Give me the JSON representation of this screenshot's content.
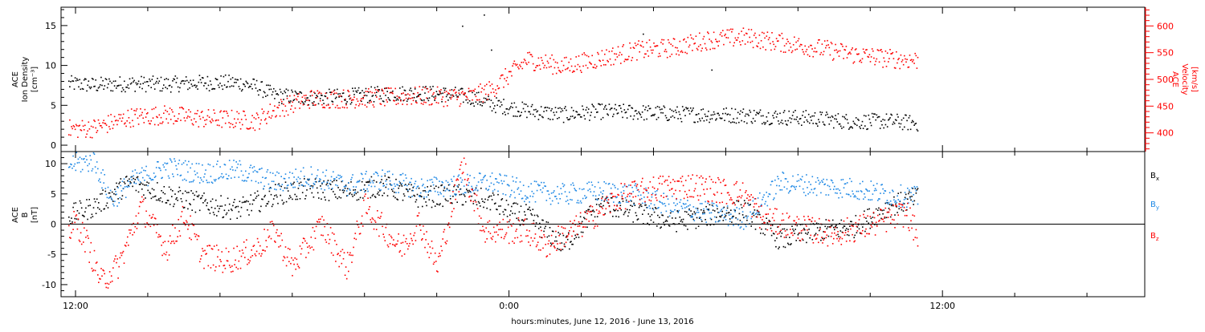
{
  "chart_data": [
    {
      "type": "scatter",
      "panel": "ion-density-velocity",
      "x_axis": {
        "label": "hours:minutes, June 12, 2016 - June 13, 2016",
        "tick_labels": [
          "12:00",
          "0:00",
          "12:00"
        ],
        "tick_times_hours": [
          12,
          24,
          36
        ],
        "xlim_hours": [
          11.6,
          41.6
        ]
      },
      "left_axis": {
        "label_lines": [
          "ACE",
          "Ion Density",
          "[cm⁻³]"
        ],
        "ylim": [
          -0.8,
          17.3
        ],
        "ticks": [
          0,
          5,
          10,
          15
        ],
        "color": "#000000"
      },
      "right_axis": {
        "label_lines": [
          "ACE",
          "Velocity",
          "[km/s]"
        ],
        "ylim": [
          365,
          635
        ],
        "ticks": [
          400,
          450,
          500,
          550,
          600
        ],
        "color": "#ff0000"
      },
      "series": [
        {
          "key": "density",
          "axis": "left",
          "color": "#000000",
          "x_hours": [
            11.8,
            12.5,
            13.5,
            14.5,
            15.5,
            16.5,
            17.0,
            17.5,
            18.5,
            19.5,
            20.5,
            21.5,
            22.5,
            23.0,
            23.5,
            24.5,
            25.5,
            26.5,
            27.5,
            28.5,
            29.5,
            30.5,
            31.5,
            32.5,
            33.5,
            34.5,
            35.3
          ],
          "values": [
            7.8,
            7.6,
            7.8,
            7.7,
            7.9,
            7.9,
            7.4,
            6.3,
            6.0,
            6.2,
            6.5,
            6.6,
            6.4,
            6.0,
            5.2,
            4.4,
            3.9,
            4.3,
            4.2,
            4.0,
            3.9,
            3.8,
            3.6,
            3.4,
            3.0,
            3.1,
            2.8
          ]
        },
        {
          "key": "velocity",
          "axis": "right",
          "color": "#ff0000",
          "x_hours": [
            11.8,
            12.5,
            13.5,
            14.5,
            15.5,
            16.5,
            17.0,
            17.5,
            18.5,
            19.5,
            20.5,
            21.5,
            22.5,
            23.0,
            23.5,
            24.5,
            25.5,
            26.5,
            27.5,
            28.5,
            29.5,
            30.5,
            31.5,
            32.5,
            33.5,
            34.5,
            35.3
          ],
          "values": [
            408,
            410,
            430,
            435,
            428,
            426,
            423,
            445,
            465,
            465,
            467,
            470,
            468,
            470,
            482,
            538,
            525,
            540,
            555,
            560,
            575,
            580,
            570,
            560,
            548,
            540,
            537
          ]
        }
      ]
    },
    {
      "type": "scatter",
      "panel": "magnetic-field",
      "left_axis": {
        "label_lines": [
          "ACE",
          "B",
          "[nT]"
        ],
        "ylim": [
          -12,
          12
        ],
        "ticks": [
          -10,
          -5,
          0,
          5,
          10
        ],
        "zero_line": true
      },
      "legend": [
        "Bx",
        "By",
        "Bz"
      ],
      "legend_placement": "right",
      "series": [
        {
          "key": "Bx",
          "color": "#000000",
          "x_hours": [
            11.8,
            12.5,
            13.5,
            14.5,
            15.5,
            16.5,
            17.5,
            18.5,
            19.5,
            20.5,
            21.5,
            22.5,
            23.5,
            24.0,
            24.5,
            25.5,
            26.5,
            27.5,
            28.5,
            29.5,
            30.5,
            31.5,
            32.5,
            33.5,
            34.5,
            35.3
          ],
          "values": [
            1.5,
            3.0,
            7.0,
            5.0,
            3.5,
            2.5,
            5.0,
            6.0,
            5.5,
            6.5,
            4.5,
            5.0,
            4.0,
            2.0,
            1.5,
            -3.5,
            3.5,
            2.0,
            0.5,
            1.5,
            2.5,
            -2.5,
            -1.0,
            -0.5,
            3.0,
            4.5
          ]
        },
        {
          "key": "By",
          "color": "#1e88e5",
          "x_hours": [
            11.8,
            12.5,
            13.0,
            13.5,
            14.5,
            15.5,
            16.5,
            17.5,
            18.5,
            19.5,
            20.5,
            21.5,
            22.5,
            23.5,
            24.5,
            25.5,
            26.5,
            27.5,
            28.5,
            29.5,
            30.5,
            31.5,
            32.5,
            33.5,
            34.5,
            35.3
          ],
          "values": [
            10.0,
            10.5,
            4.0,
            7.0,
            9.5,
            8.5,
            9.0,
            7.0,
            8.0,
            6.5,
            7.5,
            6.0,
            6.5,
            7.0,
            5.5,
            5.0,
            5.5,
            5.0,
            3.0,
            2.0,
            1.0,
            7.0,
            6.5,
            6.0,
            5.0,
            4.5
          ]
        },
        {
          "key": "Bz",
          "color": "#ff0000",
          "x_hours": [
            11.8,
            12.0,
            12.3,
            12.7,
            13.2,
            13.8,
            14.5,
            15.0,
            15.5,
            16.2,
            17.0,
            17.5,
            18.0,
            18.8,
            19.5,
            20.0,
            21.0,
            21.5,
            22.0,
            22.7,
            23.3,
            24.5,
            25.0,
            26.0,
            27.0,
            28.0,
            29.0,
            29.5,
            30.5,
            31.0,
            32.0,
            33.0,
            34.0,
            35.0,
            35.3
          ],
          "values": [
            -1.0,
            0.5,
            -3.0,
            -9.5,
            -6.5,
            3.0,
            -4.0,
            1.5,
            -5.0,
            -6.0,
            -4.0,
            -1.0,
            -7.0,
            0.0,
            -7.0,
            3.0,
            -4.0,
            0.5,
            -7.0,
            10.0,
            -1.0,
            -1.0,
            -3.5,
            0.0,
            4.5,
            6.0,
            6.5,
            6.0,
            5.0,
            1.0,
            -0.5,
            -1.5,
            0.0,
            2.0,
            -2.0
          ]
        }
      ]
    }
  ]
}
